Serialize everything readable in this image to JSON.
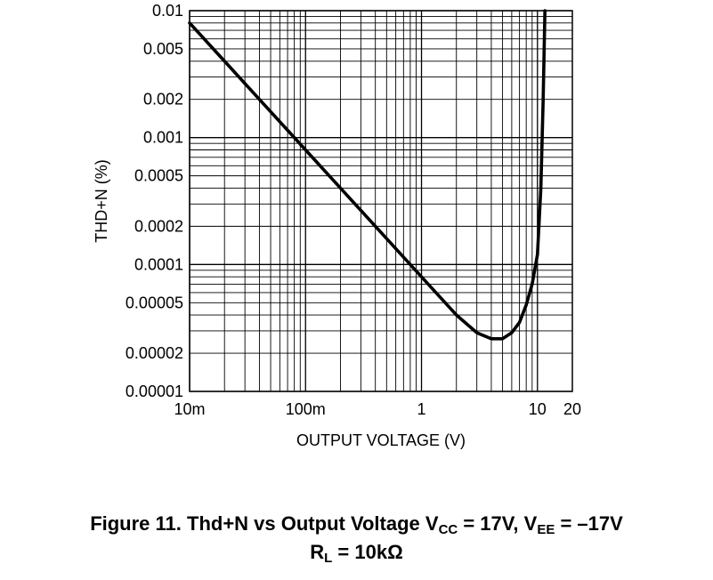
{
  "chart_data": {
    "type": "line",
    "title": "",
    "xlabel": "OUTPUT VOLTAGE (V)",
    "ylabel": "THD+N (%)",
    "xscale": "log",
    "yscale": "log",
    "xlim": [
      0.01,
      20
    ],
    "ylim": [
      1e-05,
      0.01
    ],
    "grid": true,
    "x_ticks": [
      {
        "value": 0.01,
        "label": "10m"
      },
      {
        "value": 0.1,
        "label": "100m"
      },
      {
        "value": 1,
        "label": "1"
      },
      {
        "value": 10,
        "label": "10"
      },
      {
        "value": 20,
        "label": "20"
      }
    ],
    "y_ticks": [
      {
        "value": 0.01,
        "label": "0.01"
      },
      {
        "value": 0.005,
        "label": "0.005"
      },
      {
        "value": 0.002,
        "label": "0.002"
      },
      {
        "value": 0.001,
        "label": "0.001"
      },
      {
        "value": 0.0005,
        "label": "0.0005"
      },
      {
        "value": 0.0002,
        "label": "0.0002"
      },
      {
        "value": 0.0001,
        "label": "0.0001"
      },
      {
        "value": 5e-05,
        "label": "0.00005"
      },
      {
        "value": 2e-05,
        "label": "0.00002"
      },
      {
        "value": 1e-05,
        "label": "0.00001"
      }
    ],
    "series": [
      {
        "color": "#000000",
        "x": [
          0.01,
          0.02,
          0.05,
          0.1,
          0.2,
          0.5,
          1,
          2,
          3,
          4,
          5,
          6,
          7,
          8,
          9,
          10,
          10.7,
          11.2,
          11.6
        ],
        "y": [
          0.008,
          0.004,
          0.0016,
          0.0008,
          0.0004,
          0.00016,
          8e-05,
          4e-05,
          2.9e-05,
          2.6e-05,
          2.6e-05,
          2.9e-05,
          3.5e-05,
          4.8e-05,
          7e-05,
          0.00012,
          0.0004,
          0.002,
          0.01
        ]
      }
    ]
  },
  "caption": {
    "line1_prefix": "Figure 11. Thd+N vs Output Voltage V",
    "line1_sub1": "CC",
    "line1_mid": " = 17V, V",
    "line1_sub2": "EE",
    "line1_suffix": " = –17V",
    "line2_prefix": "R",
    "line2_sub": "L",
    "line2_suffix": " = 10kΩ"
  }
}
